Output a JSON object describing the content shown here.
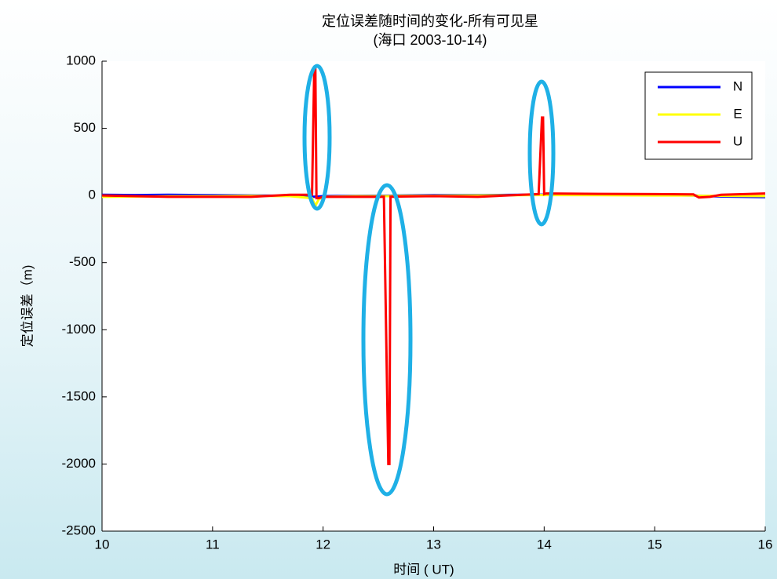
{
  "chart_data": {
    "type": "line",
    "title": "定位误差随时间的变化-所有可见星",
    "subtitle": "(海口 2003-10-14)",
    "x_label": "时间 ( UT)",
    "y_label": "定位误差（m)",
    "x": [
      10,
      10.3,
      10.6,
      11,
      11.35,
      11.7,
      11.9,
      11.92,
      11.93,
      11.94,
      11.96,
      12.0,
      12.3,
      12.55,
      12.59,
      12.6,
      12.61,
      12.7,
      13.0,
      13.4,
      13.8,
      13.95,
      13.98,
      13.99,
      14.0,
      14.02,
      14.5,
      15.0,
      15.35,
      15.4,
      15.5,
      15.6,
      16
    ],
    "series": [
      {
        "name": "N",
        "color": "#0000ff",
        "values": [
          5,
          3,
          5,
          2,
          0,
          -3,
          -8,
          -10,
          -8,
          -10,
          -8,
          -5,
          -3,
          -2,
          -2,
          -2,
          -2,
          0,
          2,
          3,
          5,
          6,
          6,
          6,
          6,
          6,
          5,
          2,
          0,
          -2,
          -5,
          -8,
          -12
        ]
      },
      {
        "name": "E",
        "color": "#ffff00",
        "values": [
          -10,
          -8,
          -6,
          -5,
          -3,
          -5,
          -20,
          -60,
          -80,
          -60,
          -30,
          -10,
          -5,
          -5,
          -5,
          -5,
          -5,
          -3,
          -2,
          0,
          2,
          3,
          3,
          3,
          3,
          3,
          2,
          0,
          0,
          -2,
          -3,
          -3,
          -5
        ]
      },
      {
        "name": "U",
        "color": "#ff0000",
        "values": [
          0,
          -5,
          -10,
          -10,
          -10,
          5,
          5,
          950,
          950,
          -20,
          -20,
          -10,
          -10,
          -10,
          -2000,
          -2000,
          -10,
          -8,
          -5,
          -10,
          5,
          10,
          580,
          580,
          10,
          15,
          12,
          10,
          8,
          -15,
          -10,
          5,
          15
        ]
      }
    ],
    "xlim": [
      10,
      16
    ],
    "xticks": [
      10,
      11,
      12,
      13,
      14,
      15,
      16
    ],
    "ylim": [
      -2500,
      1000
    ],
    "yticks": [
      1000,
      500,
      0,
      -500,
      -1000,
      -1500,
      -2000,
      -2500
    ],
    "legend": "upper right"
  }
}
